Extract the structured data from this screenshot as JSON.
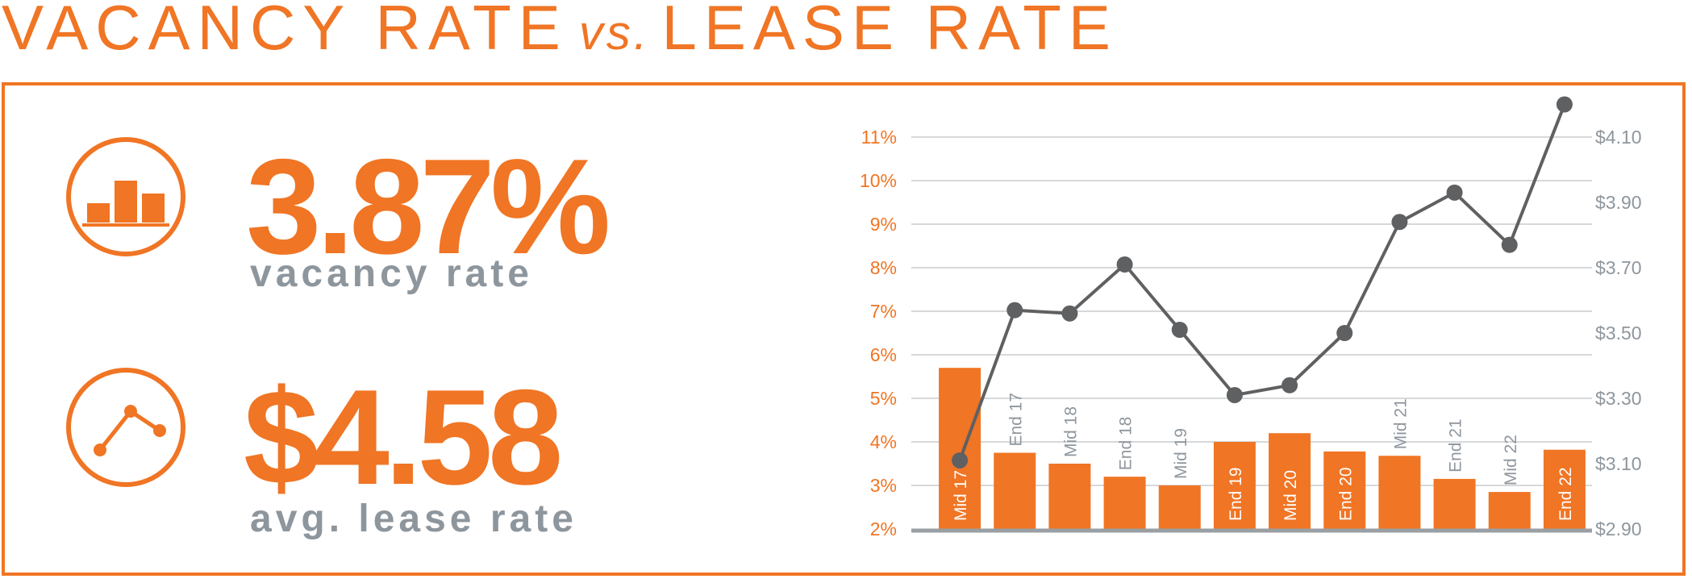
{
  "title": {
    "part1": "VACANCY RATE",
    "vs": "vs.",
    "part2": "LEASE RATE"
  },
  "stats": {
    "vacancy_value": "3.87%",
    "vacancy_label": "vacancy rate",
    "lease_value": "$4.58",
    "lease_label": "avg. lease rate"
  },
  "colors": {
    "accent": "#f07524",
    "line": "#5f6062",
    "grid": "#c9cbce",
    "label_gray": "#8e969d"
  },
  "icons": {
    "vacancy": "bar-chart-icon",
    "lease": "line-chart-icon"
  },
  "chart_data": {
    "type": "bar",
    "categories": [
      "Mid 17",
      "End 17",
      "Mid 18",
      "End 18",
      "Mid 19",
      "End 19",
      "Mid 20",
      "End 20",
      "Mid 21",
      "End 21",
      "Mid 22",
      "End 22"
    ],
    "series": [
      {
        "type": "bar",
        "axis": "left",
        "values": [
          5.7,
          3.75,
          3.5,
          3.2,
          3.0,
          4.0,
          4.2,
          3.78,
          3.68,
          3.15,
          2.85,
          3.82
        ]
      },
      {
        "type": "line",
        "axis": "right",
        "values": [
          3.11,
          3.57,
          3.56,
          3.71,
          3.51,
          3.31,
          3.34,
          3.5,
          3.84,
          3.93,
          3.77,
          4.2
        ]
      }
    ],
    "left_axis": {
      "ylim": [
        2,
        11
      ],
      "ticks": [
        2,
        3,
        4,
        5,
        6,
        7,
        8,
        9,
        10,
        11
      ],
      "tick_labels": [
        "2%",
        "3%",
        "4%",
        "5%",
        "6%",
        "7%",
        "8%",
        "9%",
        "10%",
        "11%"
      ]
    },
    "right_axis": {
      "ylim": [
        2.9,
        4.1
      ],
      "ticks": [
        2.9,
        3.1,
        3.3,
        3.5,
        3.7,
        3.9,
        4.1
      ],
      "tick_labels": [
        "$2.90",
        "$3.10",
        "$3.30",
        "$3.50",
        "$3.70",
        "$3.90",
        "$4.10"
      ]
    },
    "grid": true,
    "title": "",
    "xlabel": "",
    "ylabel": ""
  }
}
